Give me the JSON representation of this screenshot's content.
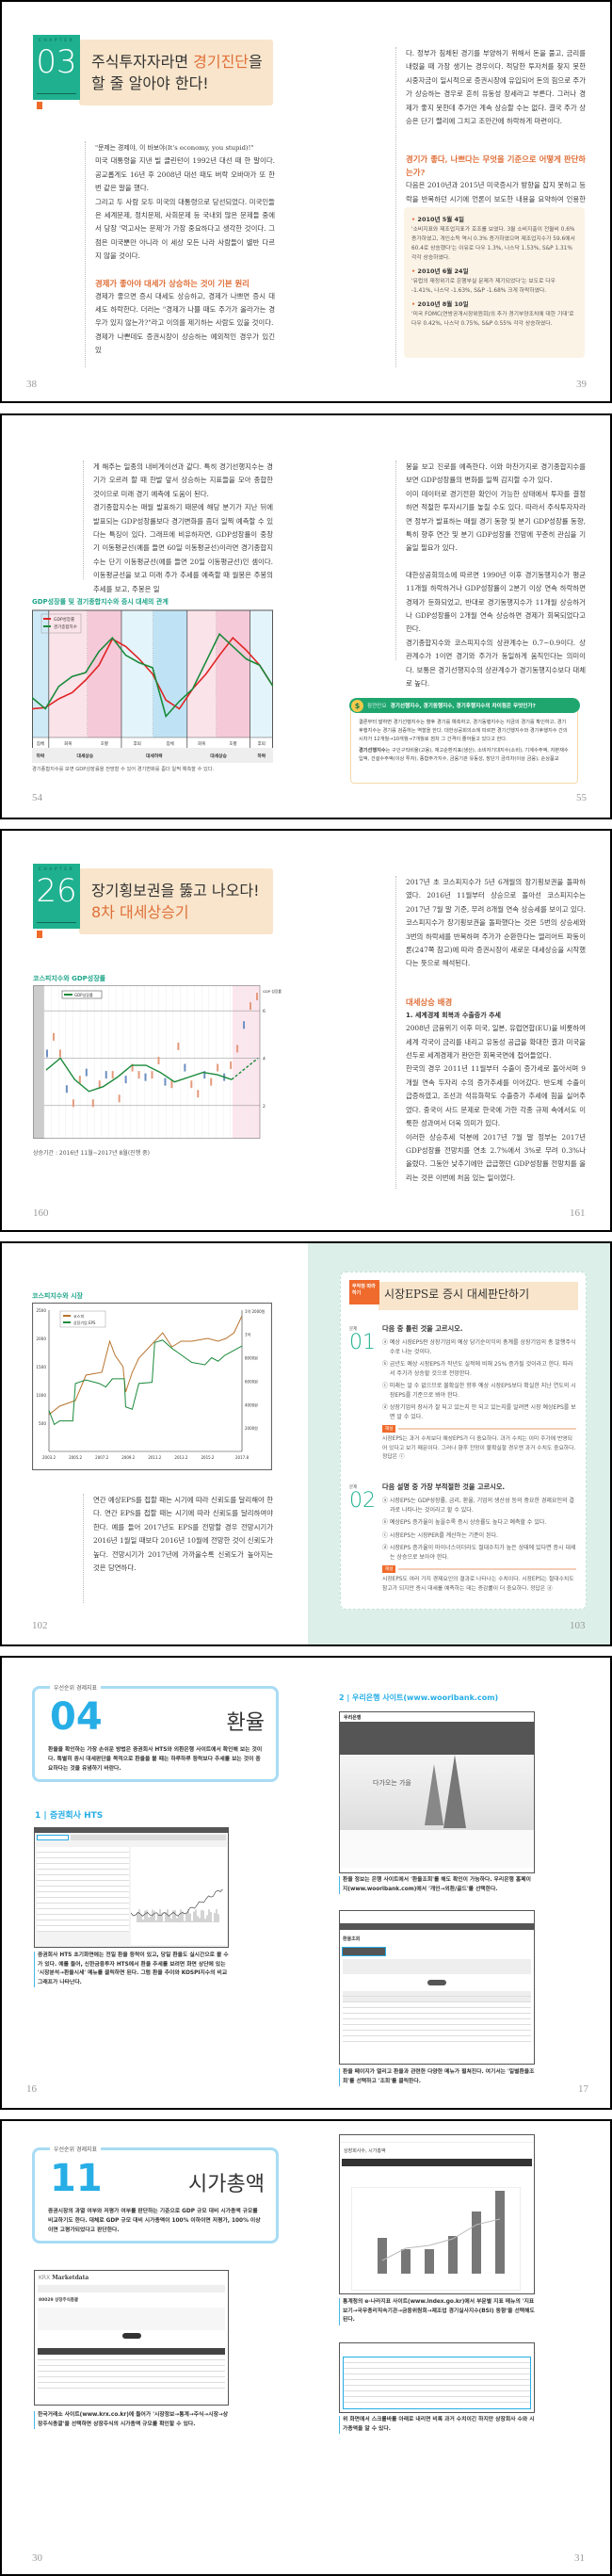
{
  "spread1": {
    "chapter": {
      "label": "CHAPTER",
      "number": "03",
      "title_line1_a": "주식투자자라면 ",
      "title_line1_hl": "경기진단",
      "title_line1_b": "을",
      "title_line2": "할 줄 알아야 한다!"
    },
    "left": {
      "paras": [
        "\"문제는 경제야, 이 바보야(It's economy, you stupid)!\"",
        "미국 대통령을 지낸 빌 클린턴이 1992년 대선 때 한 말이다. 공교롭게도 16년 후 2008년 대선 때도 버락 오바마가 또 한번 같은 말을 했다.",
        "그리고 두 사람 모두 미국의 대통령으로 당선되었다. 미국인들은 세계문제, 정치문제, 사회문제 등 국내외 많은 문제들 중에서 당장 '먹고사는 문제'가 가장 중요하다고 생각한 것이다. 그 점은 미국뿐만 아니라 이 세상 모든 나라 사람들이 별반 다르지 않을 것이다."
      ],
      "heading": "경제가 좋아야 대세가 상승하는 것이 기본 원리",
      "paras2": [
        "경제가 좋으면 증시 대세도 상승하고, 경제가 나쁘면 증시 대세도 하락한다. 더러는 \"경제가 나쁠 때도 주가가 올라가는 경우가 있지 않는가?\"라고 이의를 제기하는 사람도 있을 것이다.",
        "경제가 나쁜데도 증권시장이 상승하는 예외적인 경우가 있긴 있"
      ],
      "page": "38"
    },
    "right": {
      "para": "다. 정부가 침체된 경기를 부양하기 위해서 돈을 풀고, 금리를 내렸을 때 가장 생기는 경우이다. 적당한 투자처를 찾지 못한 시중자금이 일시적으로 증권시장에 유입되어 돈의 힘으로 주가가 상승하는 경우로 흔히 유동성 장세라고 부른다. 그러나 경제가 좋지 못한데 주가만 계속 상승할 수는 없다. 결국 주가 상승은 단기 랠리에 그치고 조만간에 하락하게 마련이다.",
      "heading": "경기가 좋다, 나쁘다는 무엇을 기준으로 어떻게 판단하는가?",
      "para2": "다음은 2010년과 2015년 미국증시가 방향을 잡지 못하고 등락을 반복하던 시기에 언론이 보도한 내용을 요약하여 인용한 것이다.",
      "box": [
        {
          "date": "2010년 5월 4일",
          "text": "'소비지표와 제조업지표가 호조를 보였다. 3월 소비지출이 전월비 0.6% 증가하였고, 개인소득 역시 0.3% 증가하였으며 제조업지수가 59.6에서 60.4로 상승했다'는 이유로 다우 1.3%, 나스닥 1.53%, S&P 1.31% 각각 상승하였다."
        },
        {
          "date": "2010년 6월 24일",
          "text": "'유럽의 재정위기로 은행부실 문제가 제기되었다'는 보도로 다우 -1.41%, 나스닥 -1.63%, S&P -1.68% 크게 하락하였다."
        },
        {
          "date": "2010년 8월 10일",
          "text": "'미국 FOMC(연방공개시장위원회)의 추가 경기부양조치에 대한 기대'로 다우 0.42%, 나스닥 0.75%, S&P 0.55% 각각 상승하였다."
        }
      ],
      "page": "39"
    }
  },
  "spread2": {
    "left": {
      "paras": [
        "게 해주는 일종의 내비게이션과 같다. 특히 경기선행지수는 경기가 오르려 할 때 한발 앞서 상승하는 지표들을 모아 종합한 것이므로 미래 경기 예측에 도움이 된다.",
        "경기종합지수는 매월 발표하기 때문에 해당 분기가 지난 뒤에 발표되는 GDP성장률보다 경기변화를 좀더 일찍 예측할 수 있다는 특징이 있다. 그래프에 비유하자면, GDP성장률이 중장기 이동평균선(예를 들면 60일 이동평균선)이라면 경기종합지수는 단기 이동평균선(예를 들면 20일 이동평균선)인 셈이다. 이동평균선을 보고 미래 주가 추세를 예측할 때 월봉은 주봉의 추세를 보고, 주봉은 일"
      ],
      "caption": "경기종합지수를 보면 GDP성장률을 전망할 수 있어 경기변화를 좀더 일찍 예측할 수 있다.",
      "page": "54"
    },
    "right": {
      "paras": [
        "봉을 보고 진로를 예측한다. 이와 마찬가지로 경기종합지수를 보면 GDP성장률의 변화를 일찍 감지할 수가 있다.",
        "이미 데이터로 경기전환 확인이 가능한 상태에서 투자를 결정하면 적절한 투자시기를 놓칠 수도 있다. 따라서 주식투자자라면 정부가 발표하는 매월 경기 동향 및 분기 GDP성장률 동향, 특히 향후 연간 및 분기 GDP성장률 전망에 꾸준히 관심을 기울일 필요가 있다."
      ],
      "paras2": [
        "대한상공회의소에 따르면 1990년 이후 경기동행지수가 평균 11개월 하락하거나 GDP성장률이 2분기 이상 연속 하락하면 경제가 둔화되었고, 반대로 경기동행지수가 11개월 상승하거나 GDP성장률이 2개월 연속 상승하면 경제가 회복되었다고 한다.",
        "경기종합지수와 코스피지수의 상관계수는 0.7~0.9이다. 상관계수가 1이면 경기와 주가가 동일하게 움직인다는 의미이다. 보통은 경기선행지수의 상관계수가 경기동행지수보다 대체로 높다."
      ],
      "tip": {
        "label": "잠깐만요",
        "title": "경기선행지수, 경기동행지수, 경기후행지수의 차이점은 무엇인가?",
        "p1": "결론부터 말하면 경기선행지수는 향후 경기를 예측하고, 경기동행지수는 지금의 경기를 확인하고, 경기후행지수는 경기를 검증하는 역할을 한다. 대한상공회의소에 따르면 경기선행지수와 경기후행지수 간의 시차가 12개월→10개월→7개월로 점차 그 간격이 줄어들고 있다고 한다.",
        "p2_bold": "경기선행지수",
        "p2": "는 구인구직비율(고용), 재고순환지표(생산), 소비자기대지수(소비), 기계수주액, 자본재수입액, 건설수주액(이상 투자), 종합주가지수, 금융기관 유동성, 장단기 금리차(이상 금융), 순상품교"
      },
      "page": "55"
    }
  },
  "spread3": {
    "chapter": {
      "label": "CHAPTER",
      "number": "26",
      "title_line1": "장기횡보권을 뚫고 나오다!",
      "title_line2": "8차 대세상승기"
    },
    "caption": "상승기간 : 2016년 11월~2017년 8월(진행 중)",
    "page_left": "160",
    "right": {
      "para": "2017년 초 코스피지수가 5년 6개월의 장기횡보권을 돌파하였다. 2016년 11월부터 상승으로 돌아선 코스피지수는 2017년 7월 말 기준, 무려 8개월 연속 상승세를 보이고 있다. 코스피지수가 장기횡보권을 돌파했다는 것은 5번의 상승세와 3번의 하락세를 반복하며 주가가 순환한다는 엘리어트 파동이론(247쪽 참고)에 따라 증권시장이 새로운 대세상승을 시작했다는 뜻으로 해석된다.",
      "heading": "대세상승 배경",
      "sub": "1. 세계경제 회복과 수출증가 추세",
      "paras": [
        "2008년 금융위기 이후 미국, 일본, 유럽연합(EU)을 비롯하여 세계 각국이 금리를 내리고 유동성 공급을 확대한 결과 미국을 선두로 세계경제가 완만한 회복국면에 접어들었다.",
        "한국의 경우 2011년 11월부터 수출이 증가세로 돌아서며 9개월 연속 두자리 수의 증가추세를 이어갔다. 반도체 수출이 급증하였고, 조선과 석유화학도 수출증가 추세에 힘을 실어주었다. 중국이 사드 문제로 한국에 가한 각종 규제 속에서도 이룩한 성과여서 더욱 의미가 있다.",
        "이러한 상승추세 덕분에 2017년 7월 말 정부는 2017년 GDP성장률 전망치를 연초 2.7%에서 3%로 무려 0.3%나 올렸다. 그동안 낮추기에만 급급했던 GDP성장률 전망치를 올리는 것은 이번에 처음 있는 일이었다."
      ],
      "page": "161"
    }
  },
  "spread4": {
    "para": "연간 예상EPS를 접할 때는 시기에 따라 신뢰도를 달리해야 한다. 연간 EPS를 접할 때는 시기에 따라 신뢰도를 달리하여야 한다. 예를 들어 2017년도 EPS를 전망할 경우 전망시기가 2016년 1월일 때보다 2016년 10월에 전망한 것이 신뢰도가 높다. 전망시기가 2017년에 가까울수록 신뢰도가 높아지는 것은 당연하다.",
    "page_left": "102",
    "card": {
      "tag": "무작정 따라하기",
      "title": "시장EPS로 증시 대세판단하기",
      "q_label": "문제",
      "expl_label": "해설",
      "questions": [
        {
          "num": "01",
          "prompt": "다음 중 틀린 것을 고르시오.",
          "options": [
            "ⓐ 예상 시장EPS란 상장기업의 예상 당기순이익의 총계를 상장기업의 총 발행주식수로 나눈 것이다.",
            "ⓑ 금년도 예상 시장EPS가 작년도 실적에 비해 25% 증가될 것이라고 한다. 따라서 주가가 상승할 것으로 전망한다.",
            "ⓒ 미래는 알 수 없으므로 불확실한 향후 예상 시장EPS보다 확실한 지난 연도의 시장EPS를 기준으로 봐야 한다.",
            "ⓓ 상장기업의 장사가 잘 되고 있는지 안 되고 있는지를 알려면 시장 예상EPS를 보면 알 수 있다."
          ],
          "explanation": "시장EPS는 과거 수치보다 예상EPS가 더 중요하다. 과거 수치는 이미 주가에 반영되어 있다고 보기 때문이다. 그러나 향후 전망이 불확실할 경우엔 과거 수치도 중요하다. 정답은 ⓒ"
        },
        {
          "num": "02",
          "prompt": "다음 설명 중 가장 부적절한 것을 고르시오.",
          "options": [
            "ⓐ 시장EPS는 GDP성장률, 금리, 환율, 기업의 생산성 등의 중요한 경제요인의 결과로 나타나는 것이라고 할 수 있다.",
            "ⓑ 예상EPS 증가율이 높을수록 증시 상승률도 높다고 예측할 수 있다.",
            "ⓒ 시장EPS는 시장PER를 계산하는 기준이 된다.",
            "ⓓ 시장EPS 증가율이 마이너스이더라도 절대수치가 높은 상태에 있다면 증시 대세는 상승으로 보아야 한다."
          ],
          "explanation": "시장EPS도 여러 가지 경제요인의 결과로 나타나는 수치이다. 시장EPS는 절대수치도 참고가 되지만 증시 대세를 예측하는 데는 증감률이 더 중요하다. 정답은 ⓓ"
        }
      ]
    },
    "page_right": "103"
  },
  "spread5": {
    "header": {
      "tag": "우선순위 경제지표",
      "number": "04",
      "name": "환율",
      "intro": "환율을 확인하는 가장 손쉬운 방법은 증권회사 HTS와 외환은행 사이트에서 확인해 보는 것이다. 특별히 증시 대세판단을 목적으로 환율을 볼 때는 하루하루 등락보다 추세를 보는 것이 중요하다는 것을 유념하기 바란다."
    },
    "sec1": "1 | 증권회사 HTS",
    "cap1": "증권회사 HTS 초기화면에는 전일 환율 등락이 있고, 당일 환율도 실시간으로 볼 수가 있다. 예를 들어, 신한금융투자 HTS에서 환율 추세를 보려면 화면 상단에 있는 '시장분석→환율시세' 메뉴를 클릭하면 된다. 그럼 환율 추이와 KOSPI지수의 비교 그래프가 나타난다.",
    "sec2": "2 | 우리은행 사이트(www.wooribank.com)",
    "bank_logo": "우리은행",
    "bank_banner": "다가오는 가을",
    "bank_page_title": "환율조회",
    "cap2": "환율 정보는 은행 사이트에서 '환율조회'를 해도 확인이 가능하다. 우리은행 홈페이지(www.wooribank.com)에서 '개인→외환/골드'를 선택한다.",
    "cap3": "환율 페이지가 열리고 환율과 관련한 다양한 메뉴가 펼쳐진다. 여기서는 '일별환율조회'를 선택하고 '조회'를 클릭한다.",
    "page_left": "16",
    "page_right": "17"
  },
  "spread6": {
    "header": {
      "tag": "우선순위 경제지표",
      "number": "11",
      "name": "시가총액",
      "intro": "증권시장의 과열 여부와 저평가 여부를 판단하는 기준으로 GDP 규모 대비 시가총액 규모를 비교하기도 한다. 대체로 GDP 규모 대비 시가총액이 100% 이하이면 저평가, 100% 이상이면 고평가되었다고 판단한다."
    },
    "krx_logo": "KRX",
    "krx_title": "Marketdata",
    "krx_page": "80029 상장주식총괄",
    "cap1": "한국거래소 사이트(www.krx.co.kr)에 들어가 '시장정보→통계→주식→시장→상장주식총괄'을 선택하면 상장주식의 시가총액 규모를 확인할 수 있다.",
    "index_title": "상장회사수, 시가총액",
    "cap2": "통계청의 e-나라지표 사이트(www.index.go.kr)에서 부문별 지표 메뉴의 '지표보기→국무총리직속기관→금융위원회→제조업 경기실사지수(BSI) 동향'을 선택해도 된다.",
    "cap3": "위 화면에서 스크롤바를 아래로 내리면 비록 과거 수치이긴 하지만 상장회사 수와 시가총액을 알 수 있다.",
    "page_left": "30",
    "page_right": "31"
  },
  "colors": {
    "chapter_green": "#1fb08f",
    "accent_orange": "#e0703a",
    "hl_blue": "#27aee6",
    "gdp_red": "#e02424",
    "index_green": "#1a8a3a",
    "kospi_brown": "#b8732c"
  },
  "chart_data": [
    {
      "type": "line",
      "title": "GDP성장률 및 경기종합지수와 증시 대세의 관계",
      "xlabel": "",
      "ylabel": "",
      "grid": false,
      "legend": "top-left",
      "series": [
        {
          "name": "GDP성장률",
          "color": "#e02424",
          "values": [
            23,
            24,
            31,
            36,
            46,
            58,
            79,
            73,
            63,
            51,
            30,
            23,
            39,
            51,
            66,
            80,
            70,
            58,
            41
          ]
        },
        {
          "name": "경기종합지수",
          "color": "#1a8a3a",
          "values": [
            32,
            23,
            41,
            49,
            52,
            69,
            80,
            66,
            60,
            56,
            17,
            29,
            39,
            61,
            83,
            73,
            63,
            58,
            41
          ]
        }
      ],
      "phases": [
        "침체",
        "회복",
        "호황",
        "후퇴",
        "침체",
        "회복",
        "호황",
        "후퇴"
      ],
      "trends": [
        "하락",
        "대세상승",
        "대세하락",
        "대세상승",
        "하락"
      ]
    },
    {
      "type": "line",
      "title": "코스피지수와 GDP성장률",
      "right_axis_label": "GDP 성장률 (%)",
      "yticks_right": [
        2,
        4,
        6
      ],
      "ylim": [
        1,
        7
      ],
      "legend": "top-left",
      "series": [
        {
          "name": "GDP성장률",
          "color": "#1a8a3a",
          "values": [
            3.5,
            4.0,
            3.1,
            2.6,
            2.8,
            3.2,
            3.7,
            3.7,
            3.4,
            3.0,
            3.2,
            3.4,
            3.3,
            3.1
          ],
          "forecast": [
            3.1,
            4.0
          ]
        },
        {
          "color": "#d9836a",
          "values": [
            4.2,
            4.9,
            4.2,
            2.7,
            2.1,
            3.1,
            3.4,
            2.1,
            2.9,
            3.3,
            3.3,
            2.3,
            3.1,
            3.6,
            3.3,
            3.2,
            3.3,
            3.9,
            3.0,
            2.9,
            4.5,
            3.6,
            2.9,
            2.5,
            3.3,
            3.0,
            3.6,
            3.2,
            3.7,
            4.4,
            5.4,
            6.2,
            6.6
          ]
        }
      ],
      "highlight_period": "상승기간"
    },
    {
      "type": "line",
      "title": "코스피지수와 시장",
      "xticks": [
        "2003.2",
        "2005.2",
        "2007.2",
        "2009.2",
        "2011.2",
        "2013.2",
        "2015.2",
        "2017.8"
      ],
      "yticks_left": [
        500,
        1000,
        1500,
        2000,
        2500
      ],
      "ylim_left": [
        0,
        2500
      ],
      "yticks_right": [
        "2000원",
        "4000원",
        "6000원",
        "8000원",
        "1억",
        "1억 2000원"
      ],
      "ylim_right": [
        0,
        12000
      ],
      "legend": "top-left",
      "series": [
        {
          "name": "코스피",
          "color": "#b8732c",
          "axis": "left",
          "points": [
            [
              2003.2,
              650
            ],
            [
              2004,
              800
            ],
            [
              2005.2,
              900
            ],
            [
              2006,
              1350
            ],
            [
              2007.2,
              1400
            ],
            [
              2007.8,
              1950
            ],
            [
              2008.2,
              1700
            ],
            [
              2008.8,
              1500
            ],
            [
              2009.0,
              1050
            ],
            [
              2009.5,
              1400
            ],
            [
              2010,
              1650
            ],
            [
              2011.2,
              1950
            ],
            [
              2011.8,
              2100
            ],
            [
              2012.5,
              1850
            ],
            [
              2013.2,
              1950
            ],
            [
              2014,
              1950
            ],
            [
              2015.2,
              2000
            ],
            [
              2016,
              1950
            ],
            [
              2016.6,
              2000
            ],
            [
              2017.2,
              2100
            ],
            [
              2017.8,
              2400
            ]
          ]
        },
        {
          "name": "상장기업 EPS",
          "color": "#1a8a3a",
          "axis": "right",
          "points": [
            [
              2003.2,
              3500
            ],
            [
              2003.6,
              2300
            ],
            [
              2004,
              2600
            ],
            [
              2005.0,
              2600
            ],
            [
              2005.2,
              5800
            ],
            [
              2006,
              6100
            ],
            [
              2007,
              5800
            ],
            [
              2007.5,
              5500
            ],
            [
              2008,
              6200
            ],
            [
              2008.9,
              6200
            ],
            [
              2009.0,
              3800
            ],
            [
              2009.5,
              3600
            ],
            [
              2010,
              5800
            ],
            [
              2011,
              5900
            ],
            [
              2011.2,
              9300
            ],
            [
              2011.8,
              9500
            ],
            [
              2012.5,
              8800
            ],
            [
              2013,
              8400
            ],
            [
              2014,
              7600
            ],
            [
              2015,
              7400
            ],
            [
              2015.5,
              8000
            ],
            [
              2016,
              7700
            ],
            [
              2016.5,
              8200
            ],
            [
              2017.8,
              9000
            ]
          ]
        }
      ]
    }
  ]
}
